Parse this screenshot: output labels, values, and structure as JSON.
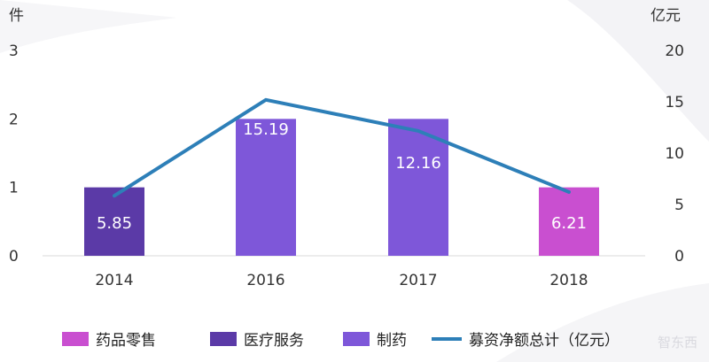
{
  "chart_data": {
    "type": "bar",
    "categories": [
      "2014",
      "2016",
      "2017",
      "2018"
    ],
    "bars": {
      "values": [
        1,
        2,
        2,
        1
      ],
      "category_series": [
        "医疗服务",
        "制药",
        "制药",
        "药品零售"
      ],
      "ylim": [
        0,
        3
      ],
      "yticks": [
        "0",
        "1",
        "2",
        "3"
      ],
      "ylabel": "件"
    },
    "line": {
      "name": "募资净额总计（亿元）",
      "values": [
        5.85,
        15.19,
        12.16,
        6.21
      ],
      "labels": [
        "5.85",
        "15.19",
        "12.16",
        "6.21"
      ],
      "ylim": [
        0,
        20
      ],
      "yticks": [
        "0",
        "5",
        "10",
        "15",
        "20"
      ],
      "ylabel": "亿元"
    },
    "legend": {
      "placement": "bottom",
      "items": [
        {
          "label": "药品零售",
          "kind": "bar",
          "color": "#c94fd0"
        },
        {
          "label": "医疗服务",
          "kind": "bar",
          "color": "#5b3aa7"
        },
        {
          "label": "制药",
          "kind": "bar",
          "color": "#7e57d9"
        },
        {
          "label": "募资净额总计（亿元）",
          "kind": "line",
          "color": "#2d7fb8"
        }
      ]
    },
    "colors": {
      "药品零售": "#c94fd0",
      "医疗服务": "#5b3aa7",
      "制药": "#7e57d9",
      "line": "#2d7fb8"
    },
    "grid": false
  },
  "watermark": "智东西"
}
